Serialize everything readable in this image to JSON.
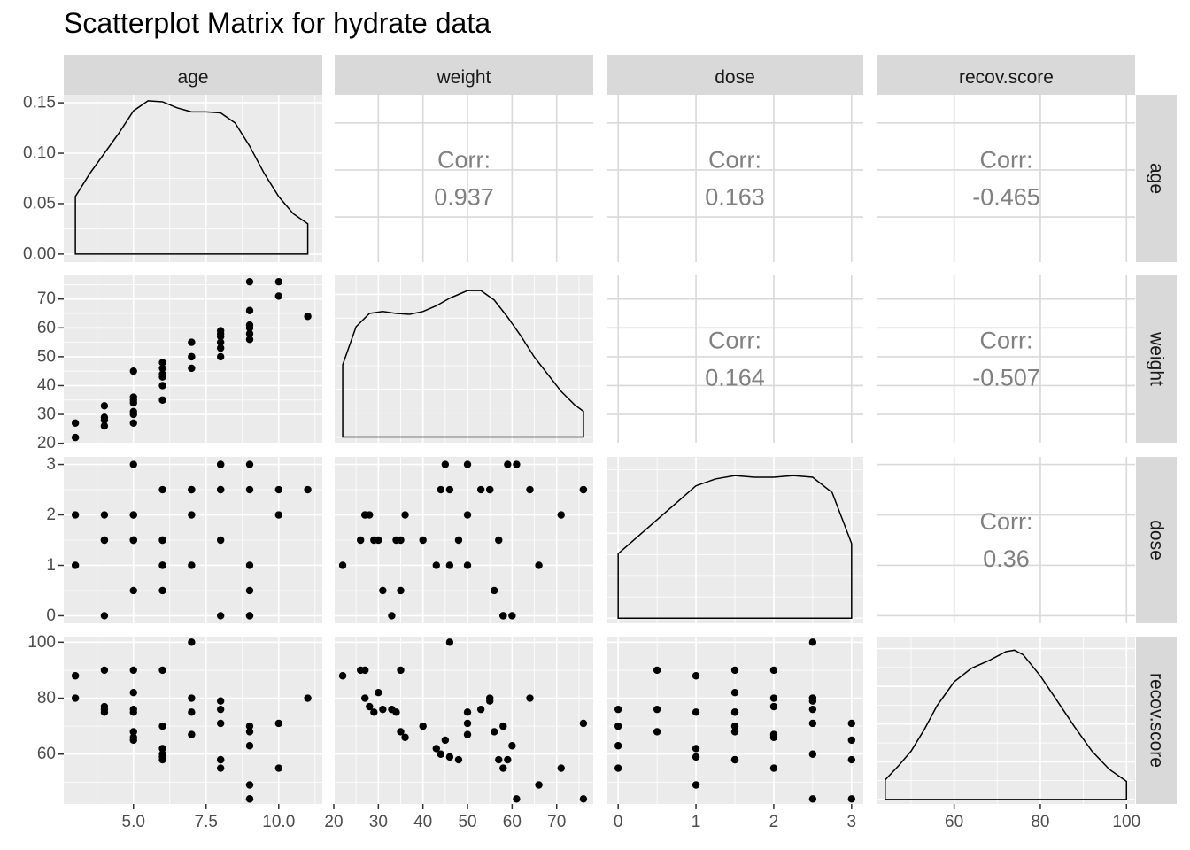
{
  "title": "Scatterplot Matrix for hydrate data",
  "chart_data": {
    "type": "scatter",
    "title": "Scatterplot Matrix for hydrate data",
    "variables": [
      "age",
      "weight",
      "dose",
      "recov.score"
    ],
    "corr_label": "Corr:",
    "correlations": [
      {
        "row": "age",
        "col": "weight",
        "text": "0.937"
      },
      {
        "row": "age",
        "col": "dose",
        "text": "0.163"
      },
      {
        "row": "age",
        "col": "recov.score",
        "text": "-0.465"
      },
      {
        "row": "weight",
        "col": "dose",
        "text": "0.164"
      },
      {
        "row": "weight",
        "col": "recov.score",
        "text": "-0.507"
      },
      {
        "row": "dose",
        "col": "recov.score",
        "text": "0.36"
      }
    ],
    "axes": {
      "age": {
        "lim": [
          2.6,
          11.5
        ],
        "ticks": [
          5,
          7.5,
          10
        ],
        "tick_labels": [
          "5.0",
          "7.5",
          "10.0"
        ]
      },
      "weight": {
        "lim": [
          20.2,
          78.2
        ],
        "ticks": [
          20,
          30,
          40,
          50,
          60,
          70
        ],
        "tick_labels": [
          "20",
          "30",
          "40",
          "50",
          "60",
          "70"
        ]
      },
      "dose": {
        "lim": [
          -0.15,
          3.15
        ],
        "ticks": [
          0,
          1,
          2,
          3
        ],
        "tick_labels": [
          "0",
          "1",
          "2",
          "3"
        ]
      },
      "recov.score": {
        "lim": [
          42.2,
          102
        ],
        "ticks": [
          60,
          80,
          100
        ],
        "tick_labels": [
          "60",
          "80",
          "100"
        ]
      }
    },
    "density_axis": {
      "lim": [
        -0.008,
        0.158
      ],
      "ticks": [
        0,
        0.05,
        0.1,
        0.15
      ],
      "tick_labels": [
        "0.00",
        "0.05",
        "0.10",
        "0.15"
      ]
    },
    "observations": [
      {
        "age": 3,
        "weight": 22,
        "dose": 1,
        "recov.score": 88
      },
      {
        "age": 3,
        "weight": 27,
        "dose": 2,
        "recov.score": 80
      },
      {
        "age": 4,
        "weight": 26,
        "dose": 1.5,
        "recov.score": 90
      },
      {
        "age": 4,
        "weight": 28,
        "dose": 2,
        "recov.score": 77
      },
      {
        "age": 4,
        "weight": 29,
        "dose": 1.5,
        "recov.score": 75
      },
      {
        "age": 4,
        "weight": 33,
        "dose": 0,
        "recov.score": 76
      },
      {
        "age": 5,
        "weight": 27,
        "dose": 2,
        "recov.score": 90
      },
      {
        "age": 5,
        "weight": 30,
        "dose": 1.5,
        "recov.score": 82
      },
      {
        "age": 5,
        "weight": 31,
        "dose": 0.5,
        "recov.score": 76
      },
      {
        "age": 5,
        "weight": 34,
        "dose": 1.5,
        "recov.score": 75
      },
      {
        "age": 5,
        "weight": 35,
        "dose": 1.5,
        "recov.score": 68
      },
      {
        "age": 5,
        "weight": 36,
        "dose": 2,
        "recov.score": 66
      },
      {
        "age": 5,
        "weight": 45,
        "dose": 3,
        "recov.score": 65
      },
      {
        "age": 6,
        "weight": 35,
        "dose": 0.5,
        "recov.score": 90
      },
      {
        "age": 6,
        "weight": 40,
        "dose": 1.5,
        "recov.score": 70
      },
      {
        "age": 6,
        "weight": 43,
        "dose": 1,
        "recov.score": 62
      },
      {
        "age": 6,
        "weight": 44,
        "dose": 2.5,
        "recov.score": 60
      },
      {
        "age": 6,
        "weight": 46,
        "dose": 1,
        "recov.score": 59
      },
      {
        "age": 6,
        "weight": 48,
        "dose": 1.5,
        "recov.score": 58
      },
      {
        "age": 7,
        "weight": 46,
        "dose": 2.5,
        "recov.score": 100
      },
      {
        "age": 7,
        "weight": 50,
        "dose": 2,
        "recov.score": 67
      },
      {
        "age": 7,
        "weight": 50,
        "dose": 1,
        "recov.score": 75
      },
      {
        "age": 7,
        "weight": 55,
        "dose": 2.5,
        "recov.score": 80
      },
      {
        "age": 8,
        "weight": 50,
        "dose": 3,
        "recov.score": 71
      },
      {
        "age": 8,
        "weight": 53,
        "dose": 2.5,
        "recov.score": 76
      },
      {
        "age": 8,
        "weight": 55,
        "dose": 2.5,
        "recov.score": 79
      },
      {
        "age": 8,
        "weight": 57,
        "dose": 1.5,
        "recov.score": 58
      },
      {
        "age": 8,
        "weight": 58,
        "dose": 0,
        "recov.score": 55
      },
      {
        "age": 8,
        "weight": 59,
        "dose": 3,
        "recov.score": 58
      },
      {
        "age": 9,
        "weight": 56,
        "dose": 0.5,
        "recov.score": 68
      },
      {
        "age": 9,
        "weight": 58,
        "dose": 0,
        "recov.score": 70
      },
      {
        "age": 9,
        "weight": 60,
        "dose": 0,
        "recov.score": 63
      },
      {
        "age": 9,
        "weight": 61,
        "dose": 3,
        "recov.score": 44
      },
      {
        "age": 9,
        "weight": 66,
        "dose": 1,
        "recov.score": 49
      },
      {
        "age": 9,
        "weight": 76,
        "dose": 2.5,
        "recov.score": 44
      },
      {
        "age": 10,
        "weight": 71,
        "dose": 2,
        "recov.score": 55
      },
      {
        "age": 10,
        "weight": 76,
        "dose": 2.5,
        "recov.score": 71
      },
      {
        "age": 11,
        "weight": 64,
        "dose": 2.5,
        "recov.score": 80
      }
    ],
    "densities": {
      "age": [
        [
          3,
          0.057
        ],
        [
          3.5,
          0.08
        ],
        [
          4,
          0.1
        ],
        [
          4.5,
          0.12
        ],
        [
          5,
          0.142
        ],
        [
          5.5,
          0.152
        ],
        [
          6,
          0.151
        ],
        [
          6.5,
          0.145
        ],
        [
          7,
          0.141
        ],
        [
          7.5,
          0.141
        ],
        [
          8,
          0.14
        ],
        [
          8.5,
          0.13
        ],
        [
          9,
          0.107
        ],
        [
          9.5,
          0.08
        ],
        [
          10,
          0.057
        ],
        [
          10.5,
          0.04
        ],
        [
          11,
          0.03
        ]
      ],
      "weight": [
        [
          22,
          0.38
        ],
        [
          25,
          0.58
        ],
        [
          28,
          0.65
        ],
        [
          31,
          0.66
        ],
        [
          34,
          0.65
        ],
        [
          37,
          0.645
        ],
        [
          40,
          0.66
        ],
        [
          43,
          0.69
        ],
        [
          46,
          0.73
        ],
        [
          50,
          0.77
        ],
        [
          53,
          0.77
        ],
        [
          56,
          0.72
        ],
        [
          59,
          0.63
        ],
        [
          62,
          0.53
        ],
        [
          65,
          0.42
        ],
        [
          68,
          0.33
        ],
        [
          71,
          0.24
        ],
        [
          74,
          0.17
        ],
        [
          76,
          0.135
        ]
      ],
      "dose": [
        [
          0,
          0.38
        ],
        [
          0.25,
          0.48
        ],
        [
          0.5,
          0.58
        ],
        [
          0.75,
          0.68
        ],
        [
          1,
          0.78
        ],
        [
          1.25,
          0.82
        ],
        [
          1.5,
          0.84
        ],
        [
          1.75,
          0.83
        ],
        [
          2,
          0.83
        ],
        [
          2.25,
          0.84
        ],
        [
          2.5,
          0.83
        ],
        [
          2.75,
          0.74
        ],
        [
          3,
          0.44
        ]
      ],
      "recov.score": [
        [
          44,
          0.13
        ],
        [
          47,
          0.22
        ],
        [
          50,
          0.32
        ],
        [
          53,
          0.46
        ],
        [
          56,
          0.62
        ],
        [
          60,
          0.78
        ],
        [
          64,
          0.87
        ],
        [
          68,
          0.92
        ],
        [
          72,
          0.98
        ],
        [
          74,
          0.99
        ],
        [
          76,
          0.96
        ],
        [
          80,
          0.82
        ],
        [
          84,
          0.65
        ],
        [
          88,
          0.48
        ],
        [
          92,
          0.32
        ],
        [
          96,
          0.2
        ],
        [
          100,
          0.12
        ]
      ]
    },
    "density_ymax": {
      "weight": 0.85,
      "dose": 0.95,
      "recov.score": 1.08
    },
    "colors": {
      "panel_bg": "#ebebeb",
      "grid_major": "#ffffff",
      "grid_upper": "#d9d9d9",
      "strip_bg": "#d9d9d9",
      "text": "#4d4d4d",
      "corr_text": "#808080",
      "point": "#000000"
    },
    "grid": true
  }
}
